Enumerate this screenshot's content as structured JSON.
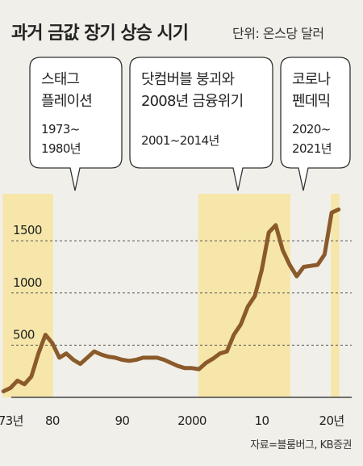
{
  "title": "과거 금값 장기 상승 시기",
  "unit": "단위: 온스당 달러",
  "source": "자료=블룸버그, KB증권",
  "colors": {
    "line": "#8b5a2b",
    "band": "#f6e6aa",
    "background": "#f1efe9"
  },
  "chart_data": {
    "type": "line",
    "title": "과거 금값 장기 상승 시기",
    "ylabel": "단위: 온스당 달러",
    "xlim": [
      1972.5,
      2024.5
    ],
    "ylim": [
      0,
      1950
    ],
    "grid": "horizontal-dashed",
    "x_ticks": [
      {
        "value": 1973,
        "label": "1973년"
      },
      {
        "value": 1980,
        "label": "80"
      },
      {
        "value": 1990,
        "label": "90"
      },
      {
        "value": 2000,
        "label": "2000"
      },
      {
        "value": 2010,
        "label": "10"
      },
      {
        "value": 2020,
        "label": "20년"
      }
    ],
    "y_ticks": [
      {
        "value": 500,
        "label": "500"
      },
      {
        "value": 1000,
        "label": "1000"
      },
      {
        "value": 1500,
        "label": "1500"
      }
    ],
    "series": [
      {
        "x": [
          1973,
          1974,
          1975,
          1976,
          1977,
          1978,
          1979,
          1980,
          1981,
          1982,
          1983,
          1984,
          1985,
          1986,
          1987,
          1988,
          1989,
          1990,
          1991,
          1992,
          1993,
          1994,
          1995,
          1996,
          1997,
          1998,
          1999,
          2000,
          2001,
          2002,
          2003,
          2004,
          2005,
          2006,
          2007,
          2008,
          2009,
          2010,
          2011,
          2012,
          2013,
          2014,
          2015,
          2016,
          2017,
          2018,
          2019,
          2020,
          2021
        ],
        "values": [
          58,
          90,
          160,
          125,
          200,
          420,
          600,
          520,
          380,
          420,
          360,
          320,
          380,
          440,
          410,
          390,
          380,
          360,
          350,
          360,
          380,
          380,
          380,
          360,
          330,
          300,
          280,
          280,
          270,
          330,
          370,
          420,
          440,
          600,
          700,
          870,
          970,
          1220,
          1580,
          1650,
          1410,
          1270,
          1160,
          1250,
          1260,
          1270,
          1370,
          1770,
          1800
        ]
      }
    ],
    "highlight_periods": [
      {
        "start": 1973,
        "end": 1980,
        "label": "스태그\n플레이션",
        "years": "1973~\n1980년"
      },
      {
        "start": 2001,
        "end": 2014,
        "label": "닷컴버블 붕괴와\n2008년 금융위기",
        "years": "2001~2014년"
      },
      {
        "start": 2020,
        "end": 2021,
        "label": "코로나\n펜데믹",
        "years": "2020~\n2021년"
      }
    ]
  }
}
